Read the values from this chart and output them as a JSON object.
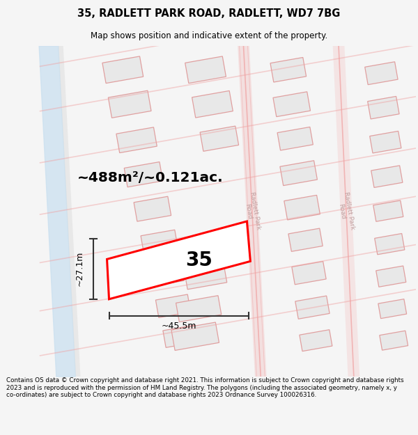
{
  "title": "35, RADLETT PARK ROAD, RADLETT, WD7 7BG",
  "subtitle": "Map shows position and indicative extent of the property.",
  "footer": "Contains OS data © Crown copyright and database right 2021. This information is subject to Crown copyright and database rights 2023 and is reproduced with the permission of HM Land Registry. The polygons (including the associated geometry, namely x, y co-ordinates) are subject to Crown copyright and database rights 2023 Ordnance Survey 100026316.",
  "area_label": "~488m²/~0.121ac.",
  "plot_number": "35",
  "width_label": "~45.5m",
  "height_label": "~27.1m",
  "road_color": "#f0a0a0",
  "road_label_color": "#c0a0a0",
  "block_face": "#e8e8e8",
  "block_edge": "#e0a0a0",
  "water_color": "#c8dff0",
  "water_color2": "#b8d4e8",
  "dim_color": "#333333",
  "map_bg": "#ffffff",
  "fig_bg": "#f5f5f5",
  "prop_color": "red",
  "prop_face": "white"
}
